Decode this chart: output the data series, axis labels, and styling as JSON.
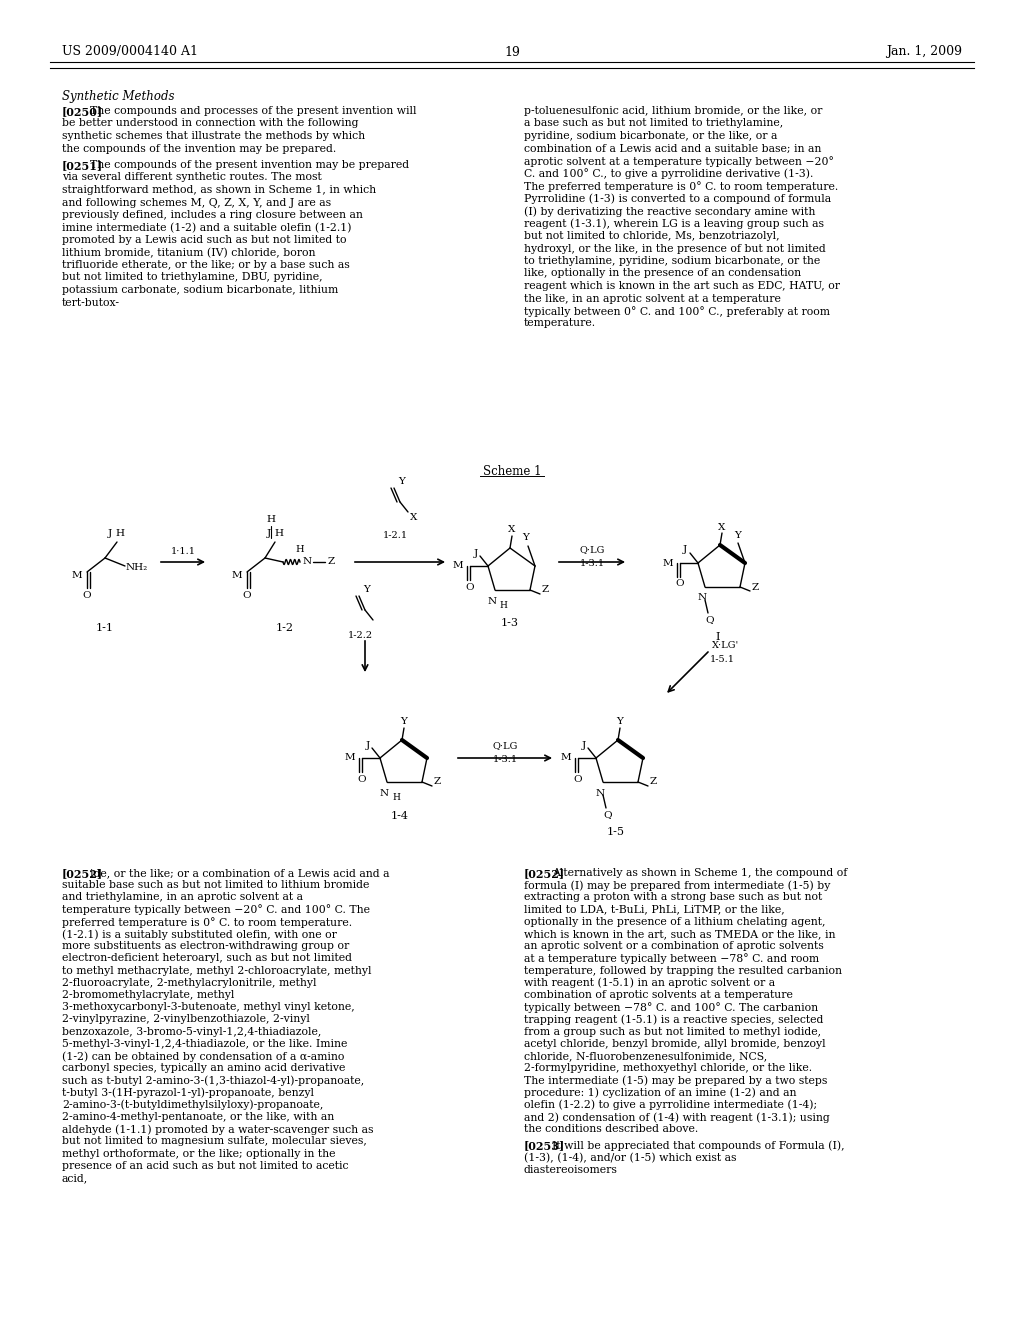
{
  "background_color": "#ffffff",
  "page_header_left": "US 2009/0004140 A1",
  "page_header_right": "Jan. 1, 2009",
  "page_number": "19",
  "section_title": "Synthetic Methods",
  "paragraph_0250_label": "[0250]",
  "paragraph_0250_text": "The compounds and processes of the present invention will be better understood in connection with the following synthetic schemes that illustrate the methods by which the compounds of the invention may be prepared.",
  "paragraph_0251_label": "[0251]",
  "paragraph_0251_text_left": "The compounds of the present invention may be prepared via several different synthetic routes. The most straightforward method, as shown in Scheme 1, in which and following schemes M, Q, Z, X, Y, and J are as previously defined, includes a ring closure between an imine intermediate (1-2) and a suitable olefin (1-2.1) promoted by a Lewis acid such as but not limited to lithium bromide, titanium (IV) chloride, boron trifluoride etherate, or the like; or by a base such as but not limited to triethylamine, DBU, pyridine, potassium carbonate, sodium bicarbonate, lithium tert-butox-",
  "paragraph_0251_text_right": "p-toluenesulfonic acid, lithium bromide, or the like, or a base such as but not limited to triethylamine, pyridine, sodium bicarbonate, or the like, or a combination of a Lewis acid and a suitable base; in an aprotic solvent at a temperature typically between −20° C. and 100° C., to give a pyrrolidine derivative (1-3). The preferred temperature is 0° C. to room temperature. Pyrrolidine (1-3) is converted to a compound of formula (I) by derivatizing the reactive secondary amine with reagent (1-3.1), wherein LG is a leaving group such as but not limited to chloride, Ms, benzotriazolyl, hydroxyl, or the like, in the presence of but not limited to triethylamine, pyridine, sodium bicarbonate, or the like, optionally in the presence of an condensation reagent which is known in the art such as EDC, HATU, or the like, in an aprotic solvent at a temperature typically between 0° C. and 100° C., preferably at room temperature.",
  "scheme_label": "Scheme 1",
  "paragraph_0252_label": "[0252]",
  "paragraph_0252_text_left": "ide, or the like; or a combination of a Lewis acid and a suitable base such as but not limited to lithium bromide and triethylamine, in an aprotic solvent at a temperature typically between −20° C. and 100° C. The preferred temperature is 0° C. to room temperature. (1-2.1) is a suitably substituted olefin, with one or more substituents as electron-withdrawing group or electron-deficient heteroaryl, such as but not limited to methyl methacrylate, methyl 2-chloroacrylate, methyl 2-fluoroacrylate, 2-methylacrylonitrile, methyl 2-bromomethylacrylate, methyl 3-methoxycarbonyl-3-butenoate, methyl vinyl ketone, 2-vinylpyrazine, 2-vinylbenzothiazole, 2-vinyl benzoxazole, 3-bromo-5-vinyl-1,2,4-thiadiazole, 5-methyl-3-vinyl-1,2,4-thiadiazole, or the like. Imine (1-2) can be obtained by condensation of a α-amino carbonyl species, typically an amino acid derivative such as t-butyl 2-amino-3-(1,3-thiazol-4-yl)-propanoate, t-butyl 3-(1H-pyrazol-1-yl)-propanoate, benzyl 2-amino-3-(t-butyldimethylsilyloxy)-propanoate, 2-amino-4-methyl-pentanoate, or the like, with an aldehyde (1-1.1) promoted by a water-scavenger such as but not limited to magnesium sulfate, molecular sieves, methyl orthoformate, or the like; optionally in the presence of an acid such as but not limited to acetic acid,",
  "paragraph_0252_text_right": "Alternatively as shown in Scheme 1, the compound of formula (I) may be prepared from intermediate (1-5) by extracting a proton with a strong base such as but not limited to LDA, t-BuLi, PhLi, LiTMP, or the like, optionally in the presence of a lithium chelating agent, which is known in the art, such as TMEDA or the like, in an aprotic solvent or a combination of aprotic solvents at a temperature typically between −78° C. and room temperature, followed by trapping the resulted carbanion with reagent (1-5.1) in an aprotic solvent or a combination of aprotic solvents at a temperature typically between −78° C. and 100° C. The carbanion trapping reagent (1-5.1) is a reactive species, selected from a group such as but not limited to methyl iodide, acetyl chloride, benzyl bromide, allyl bromide, benzoyl chloride, N-fluorobenzenesulfonimide, NCS, 2-formylpyridine, methoxyethyl chloride, or the like. The intermediate (1-5) may be prepared by a two steps procedure: 1) cyclization of an imine (1-2) and an olefin (1-2.2) to give a pyrrolidine intermediate (1-4); and 2) condensation of (1-4) with reagent (1-3.1); using the conditions described above.",
  "paragraph_0253_label": "[0253]",
  "paragraph_0253_text": "It will be appreciated that compounds of Formula (I), (1-3), (1-4), and/or (1-5) which exist as diastereoisomers"
}
